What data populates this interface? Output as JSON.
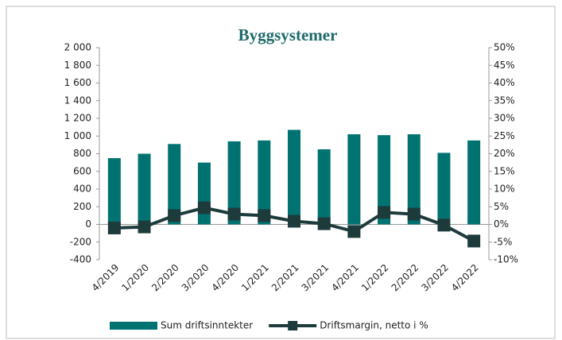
{
  "chart_data": {
    "type": "bar_line",
    "title": "Byggsystemer",
    "categories": [
      "4/2019",
      "1/2020",
      "2/2020",
      "3/2020",
      "4/2020",
      "1/2021",
      "2/2021",
      "3/2021",
      "4/2021",
      "1/2022",
      "2/2022",
      "3/2022",
      "4/2022"
    ],
    "series": [
      {
        "name": "Sum driftsinntekter",
        "type": "bar",
        "color": "#007371",
        "values": [
          750,
          800,
          910,
          700,
          940,
          950,
          1070,
          850,
          1020,
          1010,
          1020,
          810,
          950
        ]
      },
      {
        "name": "Driftsmargin, netto i %",
        "type": "line",
        "color": "#1e3b3c",
        "axis": "y2",
        "values": [
          -1,
          -0.7,
          2.5,
          4.7,
          2.9,
          2.5,
          0.9,
          0.2,
          -2,
          3.4,
          2.9,
          -0.2,
          -4.7
        ]
      }
    ],
    "ylim": [
      -400,
      2000
    ],
    "yticks": [
      -400,
      -200,
      0,
      200,
      400,
      600,
      800,
      {
        "value": 1000,
        "label": "1 000"
      },
      {
        "value": 1200,
        "label": "1 200"
      },
      {
        "value": 1400,
        "label": "1 400"
      },
      {
        "value": 1600,
        "label": "1 600"
      },
      {
        "value": 1800,
        "label": "1 800"
      },
      {
        "value": 2000,
        "label": "2 000"
      }
    ],
    "y2lim": [
      -10,
      50
    ],
    "y2ticks": [
      {
        "value": -10,
        "label": "-10%"
      },
      {
        "value": -5,
        "label": "-5%"
      },
      {
        "value": 0,
        "label": "0%"
      },
      {
        "value": 5,
        "label": "5%"
      },
      {
        "value": 10,
        "label": "10%"
      },
      {
        "value": 15,
        "label": "15%"
      },
      {
        "value": 20,
        "label": "20%"
      },
      {
        "value": 25,
        "label": "25%"
      },
      {
        "value": 30,
        "label": "30%"
      },
      {
        "value": 35,
        "label": "35%"
      },
      {
        "value": 40,
        "label": "40%"
      },
      {
        "value": 45,
        "label": "45%"
      },
      {
        "value": 50,
        "label": "50%"
      }
    ],
    "legend": "bottom"
  }
}
